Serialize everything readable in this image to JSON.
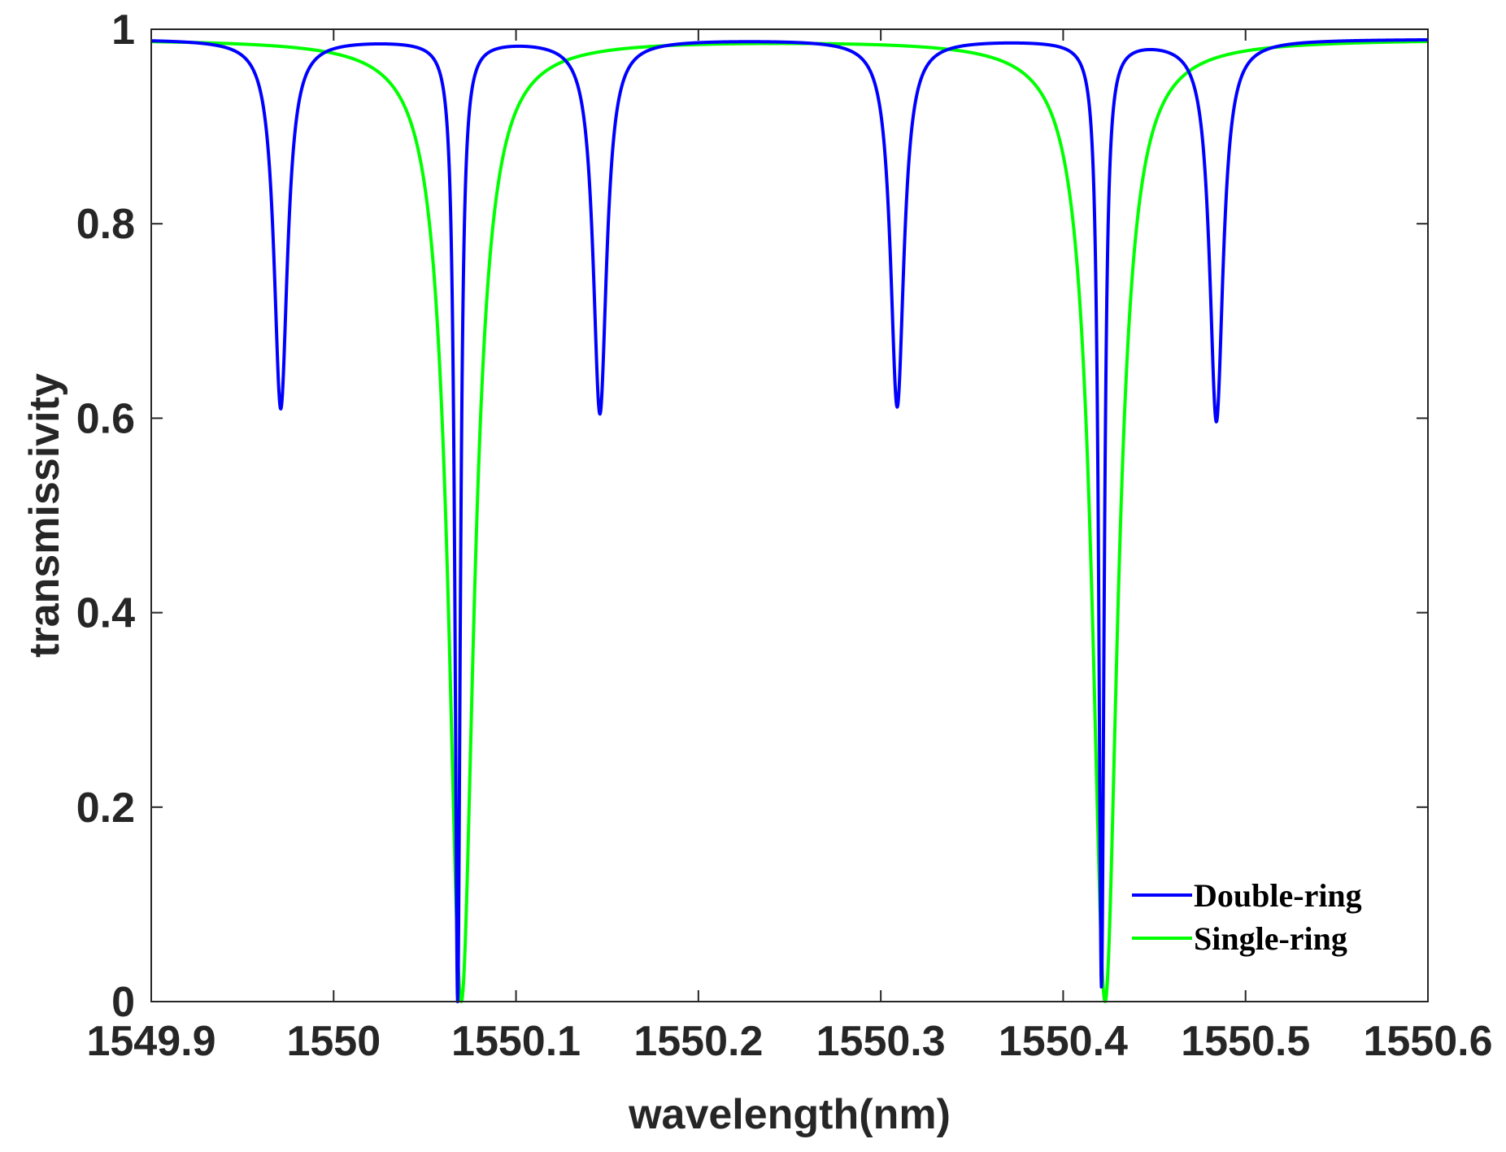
{
  "chart_data": {
    "type": "line",
    "title": "",
    "xlabel": "wavelength(nm)",
    "ylabel": "transmissivity",
    "xlim": [
      1549.9,
      1550.6
    ],
    "ylim": [
      0,
      1
    ],
    "x_ticks": [
      1549.9,
      1550,
      1550.1,
      1550.2,
      1550.3,
      1550.4,
      1550.5,
      1550.6
    ],
    "x_tick_labels": [
      "1549.9",
      "1550",
      "1550.1",
      "1550.2",
      "1550.3",
      "1550.4",
      "1550.5",
      "1550.6"
    ],
    "y_ticks": [
      0,
      0.2,
      0.4,
      0.6,
      0.8,
      1
    ],
    "y_tick_labels": [
      "0",
      "0.2",
      "0.4",
      "0.6",
      "0.8",
      "1"
    ],
    "grid": false,
    "legend_position": "bottom-right",
    "series": [
      {
        "name": "Double-ring",
        "color": "#0000ff",
        "baseline": 0.99,
        "dips": [
          {
            "center": 1549.971,
            "min": 0.61,
            "width": 0.0045
          },
          {
            "center": 1550.068,
            "min": 0.0,
            "width": 0.0018
          },
          {
            "center": 1550.146,
            "min": 0.605,
            "width": 0.0045
          },
          {
            "center": 1550.309,
            "min": 0.612,
            "width": 0.0045
          },
          {
            "center": 1550.421,
            "min": 0.015,
            "width": 0.0018
          },
          {
            "center": 1550.484,
            "min": 0.597,
            "width": 0.0045
          }
        ]
      },
      {
        "name": "Single-ring",
        "color": "#00ff00",
        "baseline": 0.99,
        "dips": [
          {
            "center": 1550.07,
            "min": 0.0,
            "width": 0.0085
          },
          {
            "center": 1550.423,
            "min": 0.0,
            "width": 0.0085
          }
        ]
      }
    ]
  }
}
